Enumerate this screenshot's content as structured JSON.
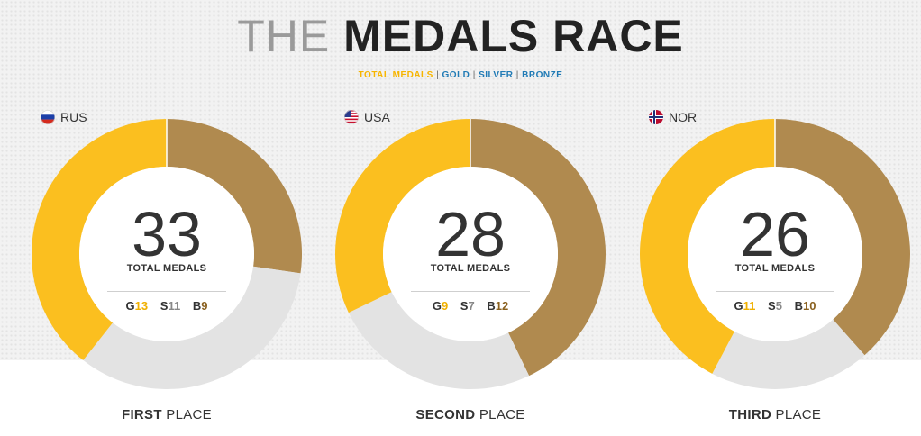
{
  "title": {
    "light": "THE",
    "bold": "MEDALS RACE"
  },
  "legend": {
    "items": [
      "TOTAL MEDALS",
      "GOLD",
      "SILVER",
      "BRONZE"
    ],
    "separator": "|",
    "colors": [
      "#f7b500",
      "#1f7ab5",
      "#1f7ab5",
      "#1f7ab5"
    ]
  },
  "colors": {
    "gold": "#fbbf1f",
    "silver": "#e3e3e3",
    "bronze": "#b08a4f",
    "number_gold": "#f0b000",
    "number_silver": "#888888",
    "number_bronze": "#8a6120"
  },
  "place_suffix": "PLACE",
  "total_label": "TOTAL MEDALS",
  "letters": {
    "gold": "G",
    "silver": "S",
    "bronze": "B"
  },
  "chart_data": [
    {
      "type": "pie",
      "country": "RUS",
      "flag": "russia-flag-icon",
      "total": 33,
      "categories": [
        "Gold",
        "Silver",
        "Bronze"
      ],
      "values": [
        13,
        11,
        9
      ],
      "place": "FIRST"
    },
    {
      "type": "pie",
      "country": "USA",
      "flag": "usa-flag-icon",
      "total": 28,
      "categories": [
        "Gold",
        "Silver",
        "Bronze"
      ],
      "values": [
        9,
        7,
        12
      ],
      "place": "SECOND"
    },
    {
      "type": "pie",
      "country": "NOR",
      "flag": "norway-flag-icon",
      "total": 26,
      "categories": [
        "Gold",
        "Silver",
        "Bronze"
      ],
      "values": [
        11,
        5,
        10
      ],
      "place": "THIRD"
    }
  ]
}
